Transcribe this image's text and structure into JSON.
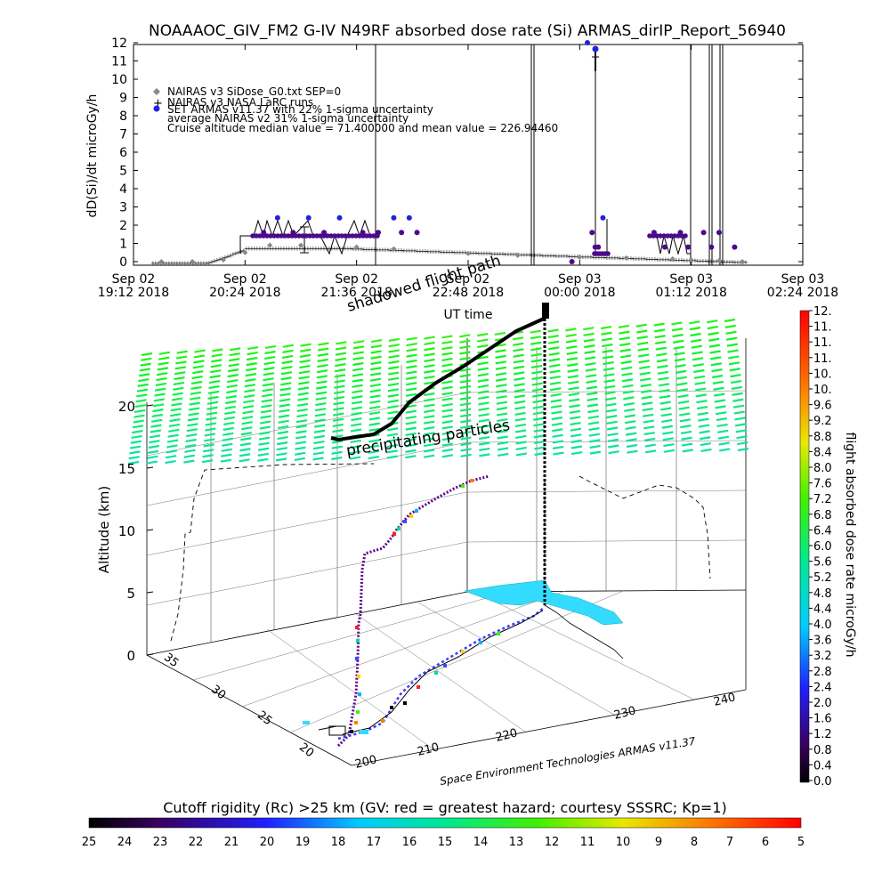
{
  "top_chart": {
    "title": "NOAAAOC_GIV_FM2 G-IV   N49RF  absorbed dose rate (Si) ARMAS_dirIP_Report_56940",
    "ylabel": "dD(Si)/dt microGy/h",
    "xlabel": "UT time",
    "y_ticks": [
      "0",
      "1",
      "2",
      "3",
      "4",
      "5",
      "6",
      "7",
      "8",
      "9",
      "10",
      "11",
      "12"
    ],
    "x_ticks": [
      {
        "date": "Sep 02",
        "time": "19:12 2018"
      },
      {
        "date": "Sep 02",
        "time": "20:24 2018"
      },
      {
        "date": "Sep 02",
        "time": "21:36 2018"
      },
      {
        "date": "Sep 02",
        "time": "22:48 2018"
      },
      {
        "date": "Sep 03",
        "time": "00:00 2018"
      },
      {
        "date": "Sep 03",
        "time": "01:12 2018"
      },
      {
        "date": "Sep 03",
        "time": "02:24 2018"
      }
    ],
    "legend": [
      {
        "label": "NAIRAS v3 SiDose_G0.txt SEP=0",
        "symbol": "diamond",
        "color": "#888888"
      },
      {
        "label": "NAIRAS v3 NASA LaRC runs",
        "symbol": "plus",
        "color": "#000000"
      },
      {
        "label": "SET ARMAS v11.37 with 22% 1-sigma uncertainty",
        "symbol": "dot",
        "color": "#2222dd"
      }
    ],
    "notes": [
      "average NAIRAS v2 31% 1-sigma uncertainty",
      "Cruise altitude median value = 71.400000 and mean value = 226.94460"
    ]
  },
  "chart_data": [
    {
      "type": "scatter",
      "title": "NOAAAOC_GIV_FM2 G-IV   N49RF  absorbed dose rate (Si) ARMAS_dirIP_Report_56940",
      "xlabel": "UT time",
      "ylabel": "dD(Si)/dt microGy/h",
      "x_range": [
        "2018-09-02 19:12",
        "2018-09-03 02:24"
      ],
      "ylim": [
        0,
        12
      ],
      "series": [
        {
          "name": "NAIRAS v3 SiDose_G0.txt SEP=0",
          "x": [
            "19:30",
            "19:50",
            "20:10",
            "20:24",
            "20:40",
            "21:00",
            "21:36",
            "22:00",
            "22:48",
            "23:20",
            "00:00",
            "00:30",
            "01:00",
            "01:12",
            "01:30",
            "01:45"
          ],
          "y": [
            0,
            0,
            0.1,
            0.5,
            0.9,
            0.9,
            0.8,
            0.7,
            0.45,
            0.35,
            0.25,
            0.2,
            0.15,
            0.1,
            0.05,
            0
          ]
        },
        {
          "name": "SET ARMAS v11.37 with 22% 1-sigma uncertainty",
          "x": [
            "20:36",
            "20:45",
            "20:55",
            "21:05",
            "21:15",
            "21:25",
            "21:40",
            "21:50",
            "22:00",
            "22:05",
            "22:10",
            "22:15",
            "00:05",
            "00:08",
            "00:10",
            "00:12",
            "00:15",
            "00:48",
            "00:55",
            "01:05",
            "01:10",
            "01:20",
            "01:25",
            "01:30",
            "01:40",
            "23:55"
          ],
          "y": [
            1.6,
            2.4,
            1.6,
            2.4,
            1.6,
            2.4,
            1.6,
            1.6,
            2.4,
            1.6,
            2.4,
            1.6,
            12,
            1.6,
            0.8,
            0.8,
            2.4,
            1.6,
            0.8,
            1.6,
            0.8,
            1.6,
            0.8,
            1.6,
            0.8,
            0
          ]
        }
      ]
    },
    {
      "type": "scatter",
      "title": "",
      "zlabel": "Altitude (km)",
      "z_ticks": [
        "0",
        "5",
        "10",
        "15",
        "20"
      ],
      "lat_ticks": [
        "20",
        "25",
        "30",
        "35"
      ],
      "lon_ticks": [
        "200",
        "210",
        "220",
        "230",
        "240"
      ],
      "annotations": [
        "precipitating particles",
        "shadowed flight path"
      ],
      "credit": "Space Environment Technologies ARMAS v11.37",
      "series": [
        {
          "name": "flight absorbed dose rate microGy/h",
          "points": [
            [
              202,
              21,
              0.3
            ],
            [
              208,
              24,
              2.0
            ],
            [
              214,
              27,
              6.0
            ],
            [
              218,
              30,
              9.5
            ],
            [
              220,
              32,
              12.5
            ],
            [
              221,
              33,
              12.5
            ],
            [
              223,
              34,
              2.5
            ]
          ]
        }
      ]
    }
  ],
  "colorbar_right": {
    "label": "flight absorbed dose rate microGy/h",
    "ticks": [
      "0.0",
      "0.4",
      "0.8",
      "1.2",
      "1.6",
      "2.0",
      "2.4",
      "2.8",
      "3.2",
      "3.6",
      "4.0",
      "4.4",
      "4.8",
      "5.2",
      "5.6",
      "6.0",
      "6.4",
      "6.8",
      "7.2",
      "7.6",
      "8.0",
      "8.4",
      "8.8",
      "9.2",
      "9.6",
      "10.",
      "10.",
      "11.",
      "11.",
      "11.",
      "12."
    ]
  },
  "colorbar_bottom": {
    "title": "Cutoff rigidity (Rc) >25 km (GV: red = greatest hazard; courtesy SSSRC; Kp=1)",
    "ticks": [
      "25",
      "24",
      "23",
      "22",
      "21",
      "20",
      "19",
      "18",
      "17",
      "16",
      "15",
      "14",
      "13",
      "12",
      "11",
      "10",
      "9",
      "8",
      "7",
      "6",
      "5"
    ]
  }
}
